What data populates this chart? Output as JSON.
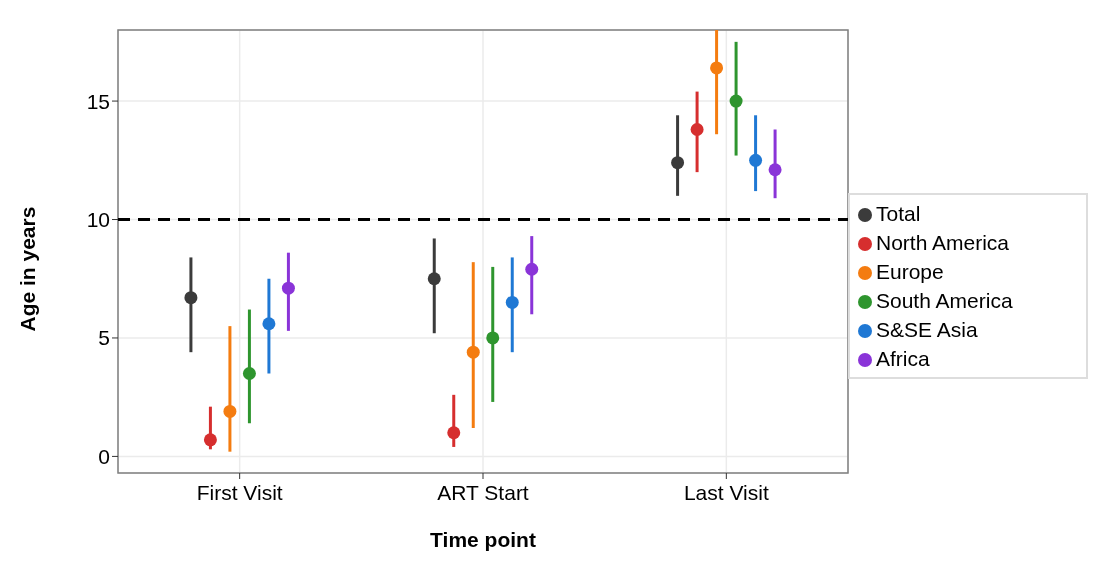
{
  "chart_data": {
    "type": "scatter",
    "xlabel": "Time point",
    "ylabel": "Age in years",
    "categories": [
      "First Visit",
      "ART Start",
      "Last Visit"
    ],
    "ylim": [
      -0.7,
      18
    ],
    "yticks": [
      0,
      5,
      10,
      15
    ],
    "grid": true,
    "legend": "right",
    "marker": "circle",
    "ref_lines": [
      {
        "axis": "y",
        "value": 10,
        "color": "#000000",
        "line_style": "dashed"
      }
    ],
    "series": [
      {
        "name": "Total",
        "color": "#3b3b3b",
        "values": [
          6.7,
          7.5,
          12.4
        ],
        "errors": [
          [
            4.4,
            8.4
          ],
          [
            5.2,
            9.2
          ],
          [
            11.0,
            14.4
          ]
        ]
      },
      {
        "name": "North America",
        "color": "#d62e2e",
        "values": [
          0.7,
          1.0,
          13.8
        ],
        "errors": [
          [
            0.3,
            2.1
          ],
          [
            0.4,
            2.6
          ],
          [
            12.0,
            15.4
          ]
        ]
      },
      {
        "name": "Europe",
        "color": "#f47c10",
        "values": [
          1.9,
          4.4,
          16.4
        ],
        "errors": [
          [
            0.2,
            5.5
          ],
          [
            1.2,
            8.2
          ],
          [
            13.6,
            18.0
          ]
        ]
      },
      {
        "name": "South America",
        "color": "#2e952e",
        "values": [
          3.5,
          5.0,
          15.0
        ],
        "errors": [
          [
            1.4,
            6.2
          ],
          [
            2.3,
            8.0
          ],
          [
            12.7,
            17.5
          ]
        ]
      },
      {
        "name": "S&SE Asia",
        "color": "#1f78d4",
        "values": [
          5.6,
          6.5,
          12.5
        ],
        "errors": [
          [
            3.5,
            7.5
          ],
          [
            4.4,
            8.4
          ],
          [
            11.2,
            14.4
          ]
        ]
      },
      {
        "name": "Africa",
        "color": "#8a34d8",
        "values": [
          7.1,
          7.9,
          12.1
        ],
        "errors": [
          [
            5.3,
            8.6
          ],
          [
            6.0,
            9.3
          ],
          [
            10.9,
            13.8
          ]
        ]
      }
    ]
  }
}
